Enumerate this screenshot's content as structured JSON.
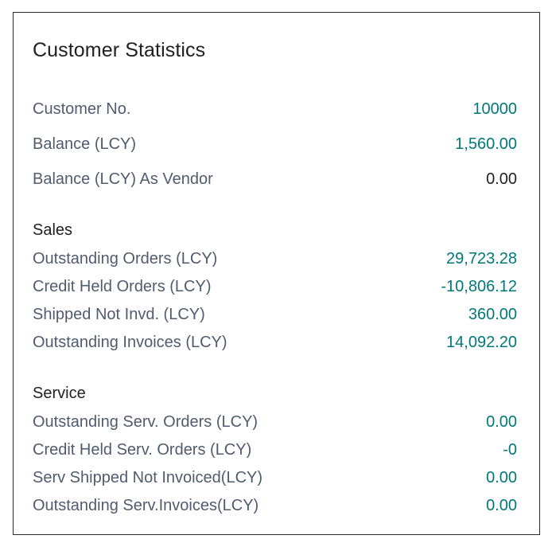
{
  "title": "Customer Statistics",
  "general": [
    {
      "label": "Customer No.",
      "value": "10000",
      "link": true
    },
    {
      "label": "Balance (LCY)",
      "value": "1,560.00",
      "link": true
    },
    {
      "label": "Balance (LCY) As Vendor",
      "value": "0.00",
      "link": false
    }
  ],
  "sales": {
    "heading": "Sales",
    "rows": [
      {
        "label": "Outstanding Orders (LCY)",
        "value": "29,723.28"
      },
      {
        "label": "Credit Held Orders (LCY)",
        "value": "-10,806.12"
      },
      {
        "label": "Shipped Not Invd. (LCY)",
        "value": "360.00"
      },
      {
        "label": "Outstanding Invoices (LCY)",
        "value": "14,092.20"
      }
    ]
  },
  "service": {
    "heading": "Service",
    "rows": [
      {
        "label": "Outstanding Serv. Orders (LCY)",
        "value": "0.00"
      },
      {
        "label": "Credit Held Serv. Orders (LCY)",
        "value": "-0"
      },
      {
        "label": "Serv Shipped Not Invoiced(LCY)",
        "value": "0.00"
      },
      {
        "label": "Outstanding Serv.Invoices(LCY)",
        "value": "0.00"
      }
    ]
  },
  "colors": {
    "label": "#505c6d",
    "link_value": "#00787a",
    "plain_value": "#212121",
    "border": "#2b2b2b"
  }
}
